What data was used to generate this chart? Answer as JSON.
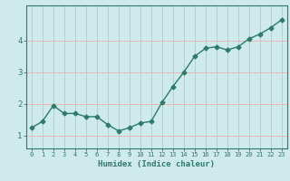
{
  "title": "",
  "xlabel": "Humidex (Indice chaleur)",
  "x": [
    0,
    1,
    2,
    3,
    4,
    5,
    6,
    7,
    8,
    9,
    10,
    11,
    12,
    13,
    14,
    15,
    16,
    17,
    18,
    19,
    20,
    21,
    22,
    23
  ],
  "y": [
    1.25,
    1.45,
    1.95,
    1.7,
    1.7,
    1.6,
    1.6,
    1.35,
    1.15,
    1.25,
    1.4,
    1.45,
    2.05,
    2.55,
    3.0,
    3.5,
    3.75,
    3.8,
    3.7,
    3.8,
    4.05,
    4.2,
    4.4,
    4.65
  ],
  "line_color": "#2d7a6e",
  "marker": "D",
  "marker_size": 2.5,
  "line_width": 1.0,
  "bg_color": "#ceeaea",
  "grid_color": "#e8b8b8",
  "axis_color": "#2d7a6e",
  "tick_label_color": "#2d7a6e",
  "xlabel_color": "#2d7a6e",
  "ylim": [
    0.6,
    5.1
  ],
  "xlim": [
    -0.5,
    23.5
  ],
  "yticks": [
    1,
    2,
    3,
    4
  ],
  "xticks": [
    0,
    1,
    2,
    3,
    4,
    5,
    6,
    7,
    8,
    9,
    10,
    11,
    12,
    13,
    14,
    15,
    16,
    17,
    18,
    19,
    20,
    21,
    22,
    23
  ]
}
